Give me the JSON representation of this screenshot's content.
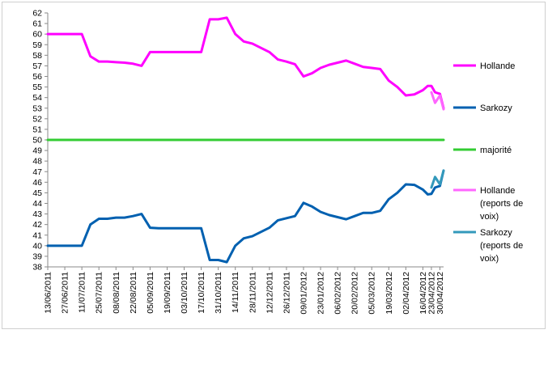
{
  "chart_data": {
    "type": "line",
    "title": "",
    "xlabel": "",
    "ylabel": "",
    "ylim": [
      38,
      62
    ],
    "ytick_step": 1,
    "grid": false,
    "legend_position": "right",
    "x_tick_labels": [
      "13/06/2011",
      "27/06/2011",
      "11/07/2011",
      "25/07/2011",
      "08/08/2011",
      "22/08/2011",
      "05/09/2011",
      "19/09/2011",
      "03/10/2011",
      "17/10/2011",
      "31/10/2011",
      "14/11/2011",
      "28/11/2011",
      "12/12/2011",
      "26/12/2011",
      "09/01/2012",
      "23/01/2012",
      "06/02/2012",
      "20/02/2012",
      "05/03/2012",
      "19/03/2012",
      "02/04/2012",
      "16/04/2012",
      "23/04/2012",
      "30/04/2012"
    ],
    "series": [
      {
        "name": "Hollande",
        "color": "#ff00ff",
        "points": [
          [
            "13/06/2011",
            60.0
          ],
          [
            "20/06/2011",
            60.0
          ],
          [
            "27/06/2011",
            60.0
          ],
          [
            "04/07/2011",
            60.0
          ],
          [
            "11/07/2011",
            60.0
          ],
          [
            "18/07/2011",
            57.9
          ],
          [
            "25/07/2011",
            57.4
          ],
          [
            "01/08/2011",
            57.4
          ],
          [
            "08/08/2011",
            57.35
          ],
          [
            "15/08/2011",
            57.3
          ],
          [
            "22/08/2011",
            57.2
          ],
          [
            "29/08/2011",
            57.0
          ],
          [
            "05/09/2011",
            58.3
          ],
          [
            "12/09/2011",
            58.3
          ],
          [
            "19/09/2011",
            58.3
          ],
          [
            "26/09/2011",
            58.3
          ],
          [
            "03/10/2011",
            58.3
          ],
          [
            "10/10/2011",
            58.3
          ],
          [
            "17/10/2011",
            58.3
          ],
          [
            "24/10/2011",
            61.4
          ],
          [
            "31/10/2011",
            61.4
          ],
          [
            "07/11/2011",
            61.55
          ],
          [
            "14/11/2011",
            60.0
          ],
          [
            "21/11/2011",
            59.3
          ],
          [
            "28/11/2011",
            59.1
          ],
          [
            "05/12/2011",
            58.7
          ],
          [
            "12/12/2011",
            58.3
          ],
          [
            "19/12/2011",
            57.6
          ],
          [
            "26/12/2011",
            57.4
          ],
          [
            "02/01/2012",
            57.15
          ],
          [
            "09/01/2012",
            56.0
          ],
          [
            "16/01/2012",
            56.3
          ],
          [
            "23/01/2012",
            56.8
          ],
          [
            "30/01/2012",
            57.1
          ],
          [
            "06/02/2012",
            57.3
          ],
          [
            "13/02/2012",
            57.5
          ],
          [
            "20/02/2012",
            57.2
          ],
          [
            "27/02/2012",
            56.9
          ],
          [
            "05/03/2012",
            56.8
          ],
          [
            "12/03/2012",
            56.7
          ],
          [
            "19/03/2012",
            55.6
          ],
          [
            "26/03/2012",
            55.0
          ],
          [
            "02/04/2012",
            54.2
          ],
          [
            "09/04/2012",
            54.3
          ],
          [
            "16/04/2012",
            54.7
          ],
          [
            "20/04/2012",
            55.1
          ],
          [
            "23/04/2012",
            55.1
          ],
          [
            "26/04/2012",
            54.5
          ],
          [
            "30/04/2012",
            54.35
          ],
          [
            "03/05/2012",
            53.0
          ]
        ]
      },
      {
        "name": "Sarkozy",
        "color": "#0060b0",
        "points": [
          [
            "13/06/2011",
            40.0
          ],
          [
            "20/06/2011",
            40.0
          ],
          [
            "27/06/2011",
            40.0
          ],
          [
            "04/07/2011",
            40.0
          ],
          [
            "11/07/2011",
            40.0
          ],
          [
            "18/07/2011",
            42.0
          ],
          [
            "25/07/2011",
            42.55
          ],
          [
            "01/08/2011",
            42.55
          ],
          [
            "08/08/2011",
            42.65
          ],
          [
            "15/08/2011",
            42.65
          ],
          [
            "22/08/2011",
            42.8
          ],
          [
            "29/08/2011",
            43.0
          ],
          [
            "05/09/2011",
            41.7
          ],
          [
            "12/09/2011",
            41.65
          ],
          [
            "19/09/2011",
            41.65
          ],
          [
            "26/09/2011",
            41.65
          ],
          [
            "03/10/2011",
            41.65
          ],
          [
            "10/10/2011",
            41.65
          ],
          [
            "17/10/2011",
            41.65
          ],
          [
            "24/10/2011",
            38.65
          ],
          [
            "31/10/2011",
            38.65
          ],
          [
            "07/11/2011",
            38.45
          ],
          [
            "14/11/2011",
            40.0
          ],
          [
            "21/11/2011",
            40.7
          ],
          [
            "28/11/2011",
            40.9
          ],
          [
            "05/12/2011",
            41.3
          ],
          [
            "12/12/2011",
            41.7
          ],
          [
            "19/12/2011",
            42.4
          ],
          [
            "26/12/2011",
            42.6
          ],
          [
            "02/01/2012",
            42.8
          ],
          [
            "09/01/2012",
            44.05
          ],
          [
            "16/01/2012",
            43.7
          ],
          [
            "23/01/2012",
            43.2
          ],
          [
            "30/01/2012",
            42.9
          ],
          [
            "06/02/2012",
            42.7
          ],
          [
            "13/02/2012",
            42.5
          ],
          [
            "20/02/2012",
            42.8
          ],
          [
            "27/02/2012",
            43.1
          ],
          [
            "05/03/2012",
            43.1
          ],
          [
            "12/03/2012",
            43.3
          ],
          [
            "19/03/2012",
            44.4
          ],
          [
            "26/03/2012",
            45.0
          ],
          [
            "02/04/2012",
            45.8
          ],
          [
            "09/04/2012",
            45.75
          ],
          [
            "16/04/2012",
            45.3
          ],
          [
            "20/04/2012",
            44.85
          ],
          [
            "23/04/2012",
            44.9
          ],
          [
            "26/04/2012",
            45.5
          ],
          [
            "30/04/2012",
            45.65
          ],
          [
            "03/05/2012",
            47.1
          ]
        ]
      },
      {
        "name": "majorité",
        "color": "#33cc33",
        "points": [
          [
            "13/06/2011",
            50.0
          ],
          [
            "03/05/2012",
            50.0
          ]
        ]
      },
      {
        "name": "Hollande (reports de voix)",
        "legend_lines": [
          "Hollande",
          "(reports de",
          "voix)"
        ],
        "color": "#ff66ff",
        "points": [
          [
            "23/04/2012",
            54.5
          ],
          [
            "26/04/2012",
            53.5
          ],
          [
            "30/04/2012",
            54.2
          ],
          [
            "03/05/2012",
            52.9
          ]
        ]
      },
      {
        "name": "Sarkozy (reports de voix)",
        "legend_lines": [
          "Sarkozy",
          "(reports de",
          "voix)"
        ],
        "color": "#3399bb",
        "points": [
          [
            "23/04/2012",
            45.5
          ],
          [
            "26/04/2012",
            46.5
          ],
          [
            "30/04/2012",
            45.8
          ],
          [
            "03/05/2012",
            47.1
          ]
        ]
      }
    ]
  }
}
